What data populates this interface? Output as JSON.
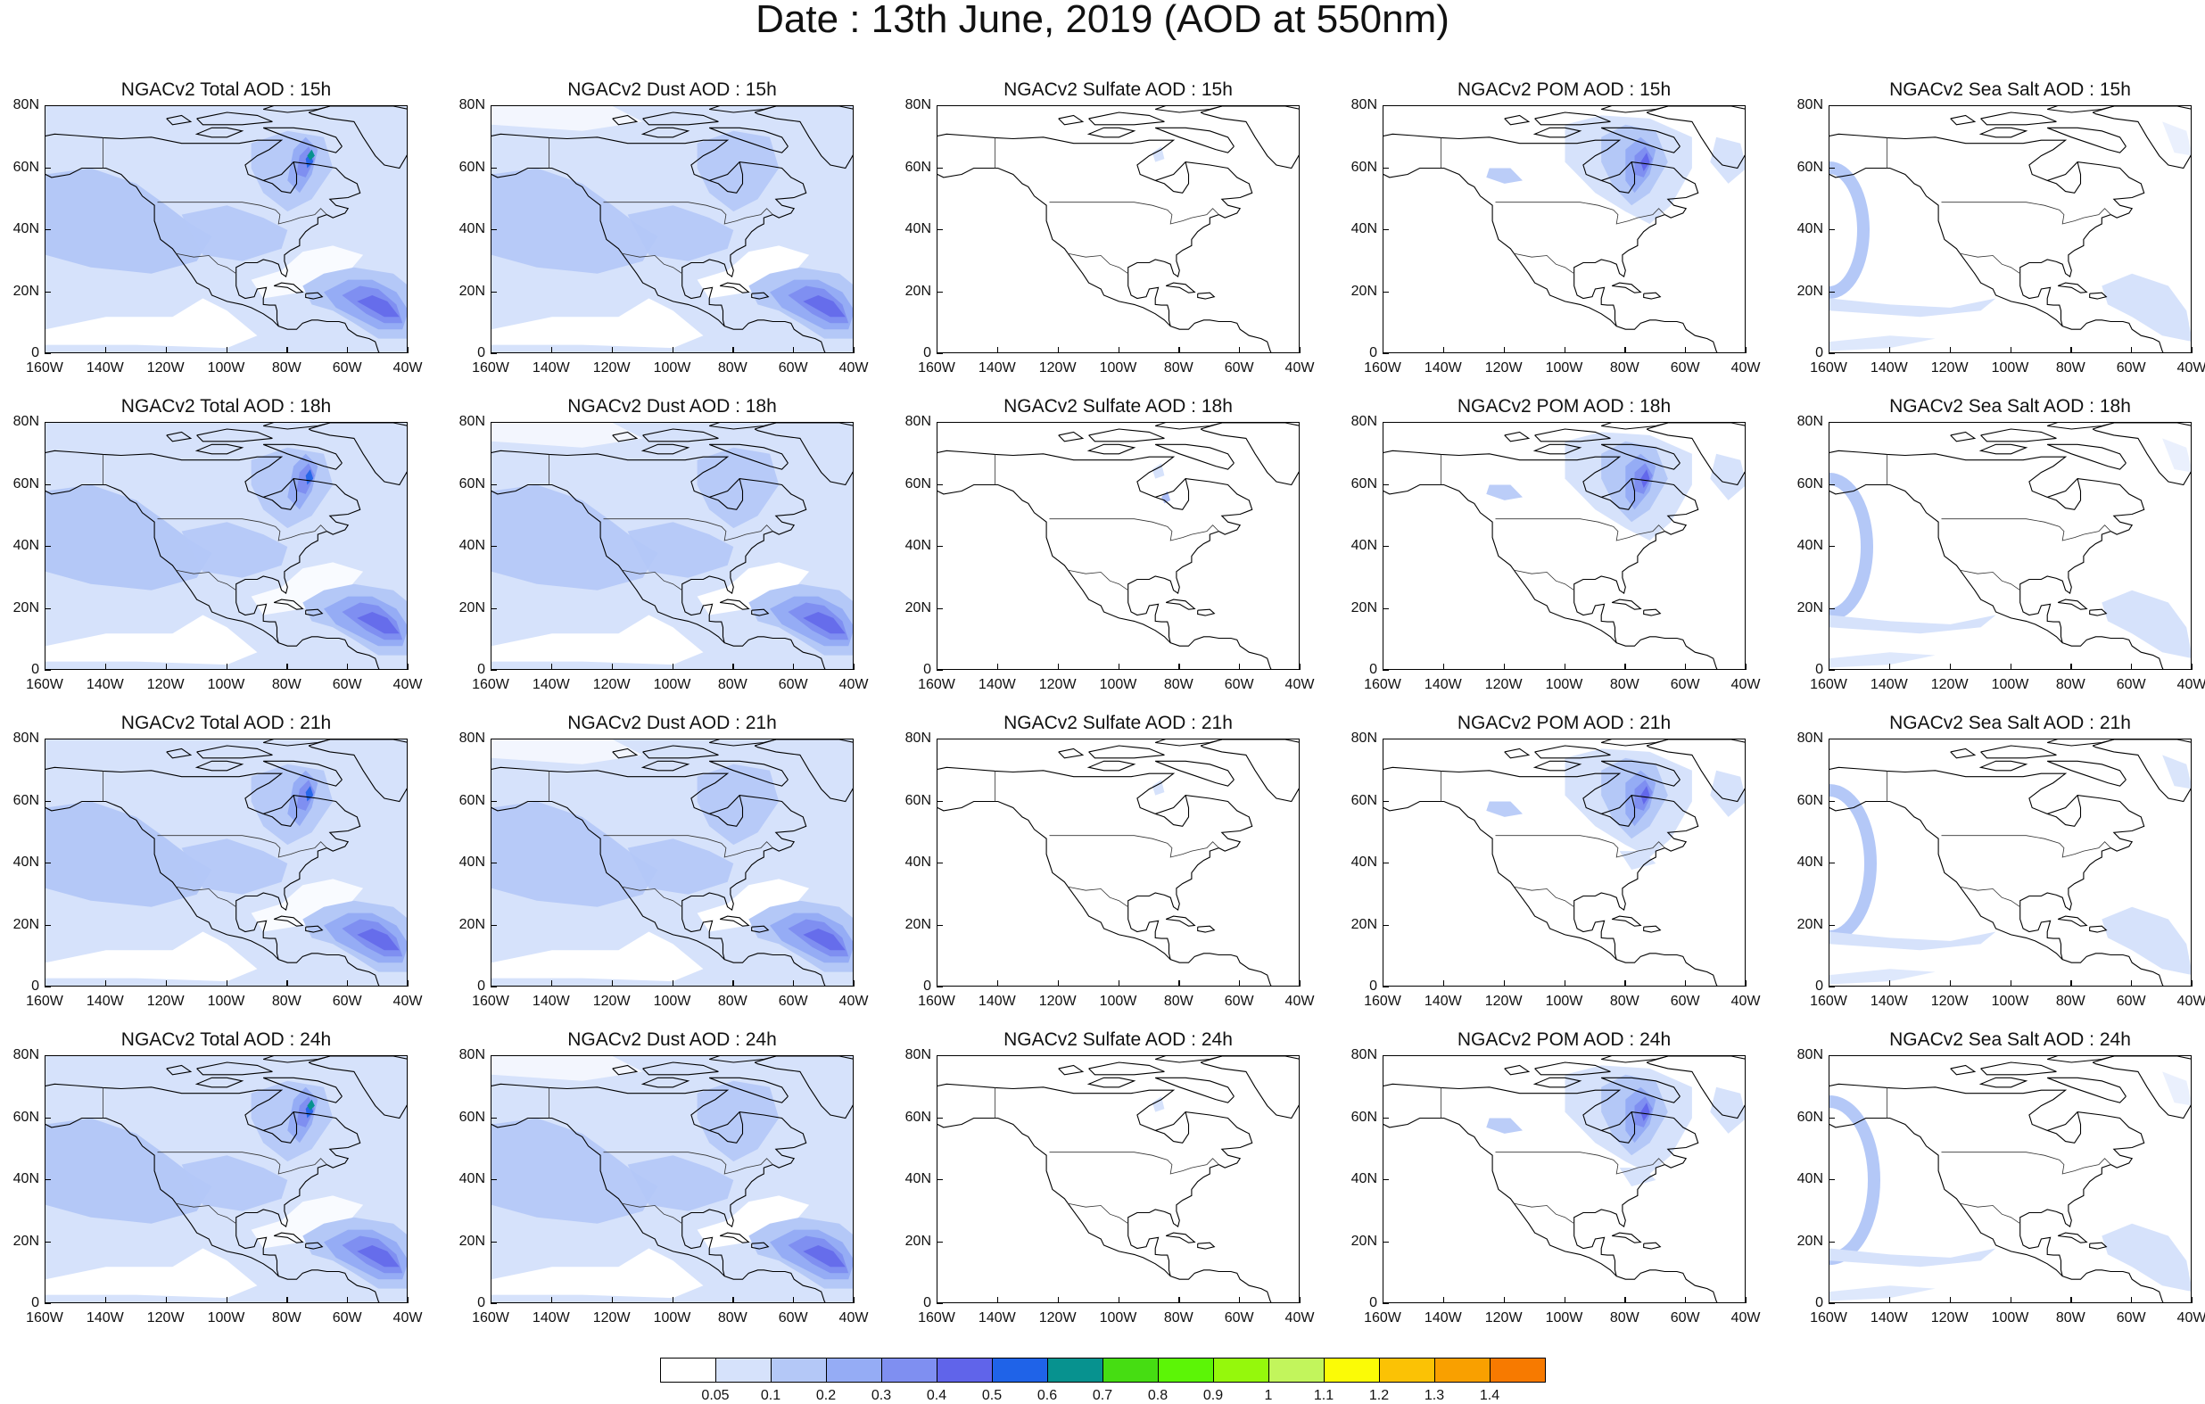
{
  "title": "Date : 13th June, 2019 (AOD at 550nm)",
  "lat_ticks": [
    "80N",
    "60N",
    "40N",
    "20N",
    "0"
  ],
  "lon_ticks": [
    "160W",
    "140W",
    "120W",
    "100W",
    "80W",
    "60W",
    "40W"
  ],
  "columns": [
    {
      "key": "total",
      "name": "Total"
    },
    {
      "key": "dust",
      "name": "Dust"
    },
    {
      "key": "sulfate",
      "name": "Sulfate"
    },
    {
      "key": "pom",
      "name": "POM"
    },
    {
      "key": "seasalt",
      "name": "Sea Salt"
    }
  ],
  "rows": [
    "15h",
    "18h",
    "21h",
    "24h"
  ],
  "panel_titles": [
    [
      "NGACv2 Total AOD : 15h",
      "NGACv2 Dust AOD : 15h",
      "NGACv2 Sulfate AOD : 15h",
      "NGACv2 POM AOD : 15h",
      "NGACv2 Sea Salt AOD : 15h"
    ],
    [
      "NGACv2 Total AOD : 18h",
      "NGACv2 Dust AOD : 18h",
      "NGACv2 Sulfate AOD : 18h",
      "NGACv2 POM AOD : 18h",
      "NGACv2 Sea Salt AOD : 18h"
    ],
    [
      "NGACv2 Total AOD : 21h",
      "NGACv2 Dust AOD : 21h",
      "NGACv2 Sulfate AOD : 21h",
      "NGACv2 POM AOD : 21h",
      "NGACv2 Sea Salt AOD : 21h"
    ],
    [
      "NGACv2 Total AOD : 24h",
      "NGACv2 Dust AOD : 24h",
      "NGACv2 Sulfate AOD : 24h",
      "NGACv2 POM AOD : 24h",
      "NGACv2 Sea Salt  AOD : 24h"
    ]
  ],
  "colorbar": {
    "labels": [
      "0.05",
      "0.1",
      "0.2",
      "0.3",
      "0.4",
      "0.5",
      "0.6",
      "0.7",
      "0.8",
      "0.9",
      "1",
      "1.1",
      "1.2",
      "1.3",
      "1.4"
    ],
    "colors": [
      "#ffffff",
      "#d6e2fb",
      "#b4c8f7",
      "#95acf5",
      "#7f8ff1",
      "#6064ea",
      "#1f63e8",
      "#07928f",
      "#46dd12",
      "#5cf506",
      "#95f80c",
      "#c2f55c",
      "#fbfb06",
      "#fbc205",
      "#f9a000",
      "#f77a00",
      "#f32a11"
    ]
  }
}
